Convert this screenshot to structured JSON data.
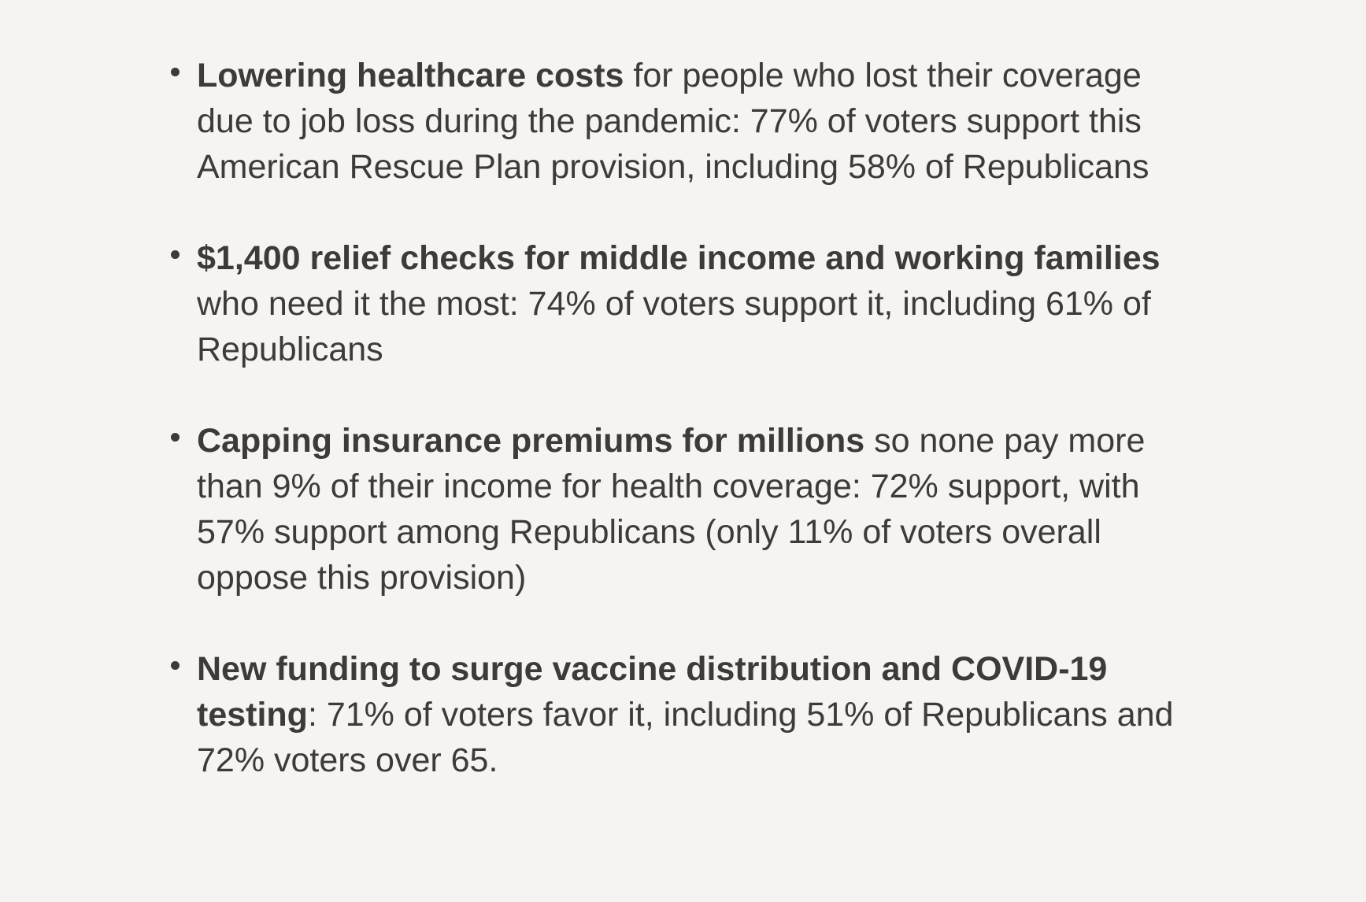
{
  "page": {
    "background_color": "#f5f4f3",
    "text_color": "#3e3a37"
  },
  "list": {
    "items": [
      {
        "bold": "Lowering healthcare costs",
        "rest": " for people who lost their coverage\ndue to job loss during the pandemic: 77% of voters support this\nAmerican Rescue Plan provision, including 58% of Republicans"
      },
      {
        "bold": "$1,400 relief checks for middle income and working families",
        "rest": "\nwho need it the most: 74% of voters support it, including 61% of\nRepublicans"
      },
      {
        "bold": "Capping insurance premiums for millions",
        "rest": " so none pay more\nthan 9% of their income for health coverage: 72% support, with\n57% support among Republicans (only 11% of voters overall\noppose this provision)"
      },
      {
        "bold": "New funding to surge vaccine distribution and COVID-19\ntesting",
        "rest": ": 71% of voters favor it, including 51% of Republicans and\n72% voters over 65."
      }
    ]
  }
}
